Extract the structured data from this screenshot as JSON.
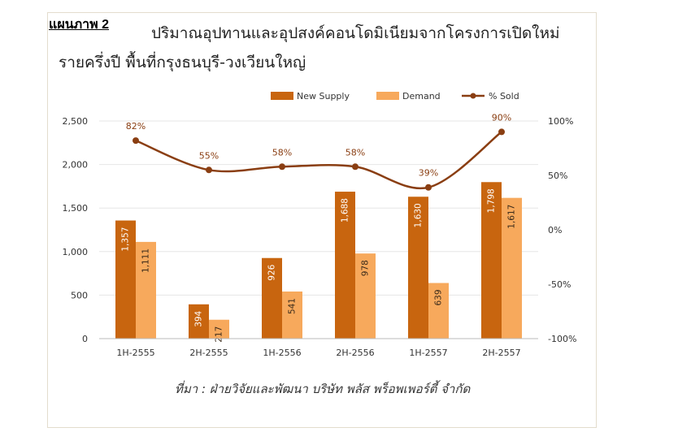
{
  "header": {
    "figure_label": "แผนภาพ 2",
    "title_line1": "ปริมาณอุปทานและอุปสงค์คอนโดมิเนียมจากโครงการเปิดใหม่",
    "title_line2": "รายครึ่งปี พื้นที่กรุงธนบุรี-วงเวียนใหญ่"
  },
  "source_note": "ที่มา : ฝ่ายวิจัยและพัฒนา บริษัท พลัส พร็อพเพอร์ตี้ จำกัด",
  "colors": {
    "new_supply": "#c8650f",
    "demand": "#f7a95c",
    "sold_line": "#8a3e12"
  },
  "chart_data": {
    "type": "bar",
    "categories": [
      "1H-2555",
      "2H-2555",
      "1H-2556",
      "2H-2556",
      "1H-2557",
      "2H-2557"
    ],
    "series": [
      {
        "name": "New Supply",
        "type": "bar",
        "axis": "left",
        "values": [
          1357,
          394,
          926,
          1688,
          1630,
          1798
        ],
        "labels": [
          "1,357",
          "394",
          "926",
          "1,688",
          "1,630",
          "1,798"
        ]
      },
      {
        "name": "Demand",
        "type": "bar",
        "axis": "left",
        "values": [
          1111,
          217,
          541,
          978,
          639,
          1617
        ],
        "labels": [
          "1,111",
          "217",
          "541",
          "978",
          "639",
          "1,617"
        ]
      },
      {
        "name": "% Sold",
        "type": "line",
        "axis": "right",
        "values": [
          82,
          55,
          58,
          58,
          39,
          90
        ],
        "labels": [
          "82%",
          "55%",
          "58%",
          "58%",
          "39%",
          "90%"
        ]
      }
    ],
    "y_left": {
      "min": 0,
      "max": 2500,
      "ticks": [
        0,
        500,
        1000,
        1500,
        2000,
        2500
      ],
      "tick_labels": [
        "0",
        "500",
        "1,000",
        "1,500",
        "2,000",
        "2,500"
      ]
    },
    "y_right": {
      "min": -100,
      "max": 100,
      "ticks": [
        -100,
        -50,
        0,
        50,
        100
      ],
      "tick_labels": [
        "-100%",
        "-50%",
        "0%",
        "50%",
        "100%"
      ]
    },
    "grid": true,
    "legend": {
      "position": "top-right",
      "entries": [
        "New Supply",
        "Demand",
        "% Sold"
      ]
    }
  }
}
